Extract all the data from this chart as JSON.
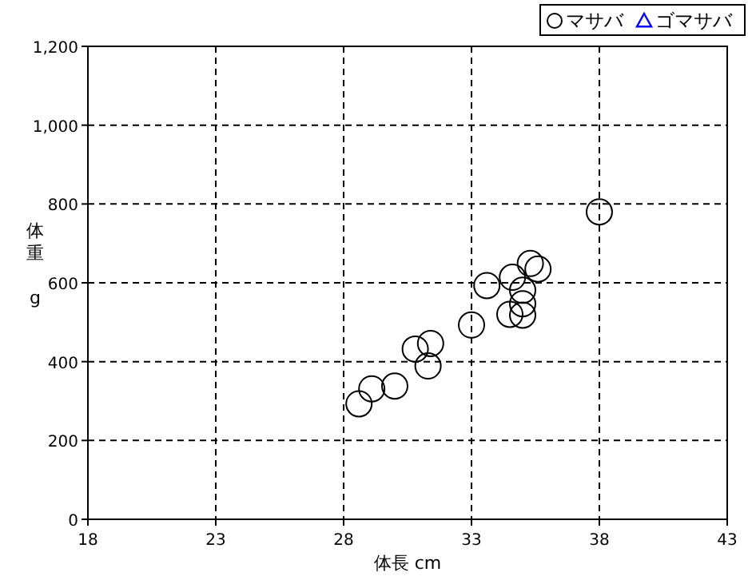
{
  "chart_data": {
    "type": "scatter",
    "xlabel": "体長 cm",
    "ylabel": "体重 g",
    "xlim": [
      18,
      43
    ],
    "xticks": [
      18,
      23,
      28,
      33,
      38,
      43
    ],
    "ylim": [
      0,
      1200
    ],
    "yticks": [
      0,
      200,
      400,
      600,
      800,
      {
        "value": 1000,
        "label": "1,000"
      },
      {
        "value": 1200,
        "label": "1,200"
      }
    ],
    "grid": true,
    "legend": "top right",
    "series": [
      {
        "name": "マサバ",
        "color": "#000000",
        "marker": "circle",
        "x": [
          28.6,
          29.1,
          30.0,
          30.8,
          31.4,
          31.3,
          33.0,
          33.6,
          34.6,
          34.5,
          35.0,
          35.0,
          35.0,
          35.3,
          35.6,
          38.0
        ],
        "values": [
          293,
          331,
          338,
          432,
          446,
          389,
          493,
          593,
          614,
          520,
          518,
          547,
          581,
          649,
          635,
          780
        ]
      },
      {
        "name": "ゴマサバ",
        "color": "#0000ff",
        "marker": "triangle"
      }
    ]
  }
}
